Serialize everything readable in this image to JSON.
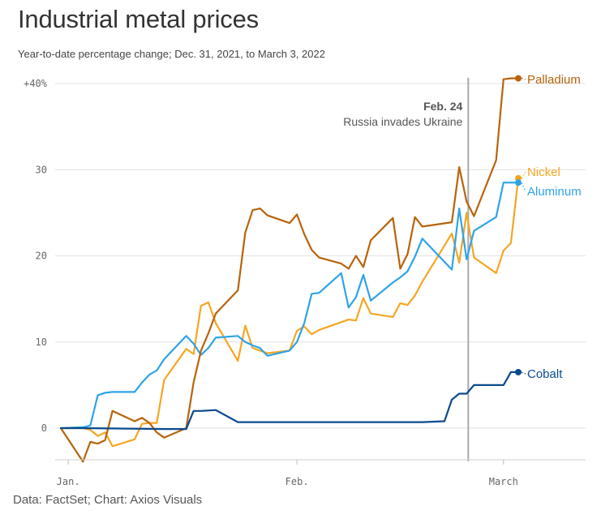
{
  "header": {
    "title": "Industrial metal prices",
    "subtitle": "Year-to-date percentage change; Dec. 31, 2021, to March 3, 2022"
  },
  "footer": {
    "source": "Data: FactSet; Chart: Axios Visuals"
  },
  "chart_data": {
    "type": "line",
    "title": "Industrial metal prices",
    "subtitle": "Year-to-date percentage change; Dec. 31, 2021, to March 3, 2022",
    "xlim": [
      "2021-12-31",
      "2022-03-03"
    ],
    "ylim": [
      -5,
      41
    ],
    "y_ticks": [
      {
        "value": 0,
        "label": "0"
      },
      {
        "value": 10,
        "label": "10"
      },
      {
        "value": 20,
        "label": "20"
      },
      {
        "value": 30,
        "label": "30"
      },
      {
        "value": 40,
        "label": "+40%"
      }
    ],
    "x_ticks": [
      {
        "date": "2022-01-01",
        "label": "Jan."
      },
      {
        "date": "2022-02-01",
        "label": "Feb."
      },
      {
        "date": "2022-03-01",
        "label": "March"
      }
    ],
    "grid": true,
    "annotation": {
      "date": "2022-02-24",
      "label": "Feb. 24",
      "text": "Russia invades Ukraine"
    },
    "series": [
      {
        "name": "Palladium",
        "color": "#b8630b",
        "x": [
          "2021-12-31",
          "2022-01-03",
          "2022-01-04",
          "2022-01-05",
          "2022-01-06",
          "2022-01-07",
          "2022-01-10",
          "2022-01-11",
          "2022-01-12",
          "2022-01-13",
          "2022-01-14",
          "2022-01-17",
          "2022-01-18",
          "2022-01-19",
          "2022-01-20",
          "2022-01-21",
          "2022-01-24",
          "2022-01-25",
          "2022-01-26",
          "2022-01-27",
          "2022-01-28",
          "2022-01-31",
          "2022-02-01",
          "2022-02-02",
          "2022-02-03",
          "2022-02-04",
          "2022-02-07",
          "2022-02-08",
          "2022-02-09",
          "2022-02-10",
          "2022-02-11",
          "2022-02-14",
          "2022-02-15",
          "2022-02-16",
          "2022-02-17",
          "2022-02-18",
          "2022-02-22",
          "2022-02-23",
          "2022-02-24",
          "2022-02-25",
          "2022-02-28",
          "2022-03-01",
          "2022-03-02",
          "2022-03-03"
        ],
        "values": [
          0,
          -3.9,
          -1.6,
          -1.8,
          -1.4,
          2,
          0.8,
          1.2,
          0.6,
          -0.5,
          -1.1,
          0,
          5.3,
          9,
          11,
          13.3,
          16,
          22.7,
          25.3,
          25.5,
          24.7,
          23.8,
          24.8,
          22.5,
          20.7,
          19.8,
          19.1,
          18.5,
          20,
          18.7,
          21.8,
          24.4,
          18.5,
          20.2,
          24.5,
          23.4,
          23.9,
          30.3,
          26.3,
          24.6,
          31.1,
          40.5,
          40.6,
          40.6
        ]
      },
      {
        "name": "Nickel",
        "color": "#f5a623",
        "x": [
          "2021-12-31",
          "2022-01-03",
          "2022-01-04",
          "2022-01-05",
          "2022-01-06",
          "2022-01-07",
          "2022-01-10",
          "2022-01-11",
          "2022-01-12",
          "2022-01-13",
          "2022-01-14",
          "2022-01-17",
          "2022-01-18",
          "2022-01-19",
          "2022-01-20",
          "2022-01-21",
          "2022-01-24",
          "2022-01-25",
          "2022-01-26",
          "2022-01-27",
          "2022-01-28",
          "2022-01-31",
          "2022-02-01",
          "2022-02-02",
          "2022-02-03",
          "2022-02-04",
          "2022-02-07",
          "2022-02-08",
          "2022-02-09",
          "2022-02-10",
          "2022-02-11",
          "2022-02-14",
          "2022-02-15",
          "2022-02-16",
          "2022-02-17",
          "2022-02-18",
          "2022-02-22",
          "2022-02-23",
          "2022-02-24",
          "2022-02-25",
          "2022-02-28",
          "2022-03-01",
          "2022-03-02",
          "2022-03-03"
        ],
        "values": [
          0,
          0,
          -0.2,
          -0.9,
          -0.5,
          -2.1,
          -1.3,
          0.5,
          0.6,
          0.6,
          5.6,
          9.2,
          8.6,
          14.2,
          14.6,
          12.2,
          7.8,
          11.9,
          9.3,
          9,
          8.7,
          9,
          11.3,
          11.8,
          10.9,
          11.4,
          12.3,
          12.6,
          12.5,
          15.1,
          13.3,
          12.9,
          14.5,
          14.3,
          15.4,
          17,
          22.6,
          19.2,
          25,
          19.8,
          18,
          20.6,
          21.5,
          29
        ]
      },
      {
        "name": "Aluminum",
        "color": "#2ea3e8",
        "x": [
          "2021-12-31",
          "2022-01-03",
          "2022-01-04",
          "2022-01-05",
          "2022-01-06",
          "2022-01-07",
          "2022-01-10",
          "2022-01-11",
          "2022-01-12",
          "2022-01-13",
          "2022-01-14",
          "2022-01-17",
          "2022-01-18",
          "2022-01-19",
          "2022-01-20",
          "2022-01-21",
          "2022-01-24",
          "2022-01-25",
          "2022-01-26",
          "2022-01-27",
          "2022-01-28",
          "2022-01-31",
          "2022-02-01",
          "2022-02-02",
          "2022-02-03",
          "2022-02-04",
          "2022-02-07",
          "2022-02-08",
          "2022-02-09",
          "2022-02-10",
          "2022-02-11",
          "2022-02-14",
          "2022-02-15",
          "2022-02-16",
          "2022-02-17",
          "2022-02-18",
          "2022-02-22",
          "2022-02-23",
          "2022-02-24",
          "2022-02-25",
          "2022-02-28",
          "2022-03-01",
          "2022-03-02",
          "2022-03-03"
        ],
        "values": [
          0,
          0.1,
          0.3,
          3.8,
          4.1,
          4.2,
          4.2,
          5.3,
          6.2,
          6.7,
          8,
          10.7,
          9.8,
          8.5,
          9.3,
          10.5,
          10.7,
          10,
          9.6,
          9.3,
          8.4,
          9,
          10,
          12.2,
          15.6,
          15.7,
          18,
          14,
          15.2,
          17.8,
          14.8,
          16.9,
          17.5,
          18.2,
          19.9,
          22,
          18.4,
          25.5,
          19.6,
          22.9,
          24.5,
          28.5,
          28.5,
          28.5
        ]
      },
      {
        "name": "Cobalt",
        "color": "#0b4a8f",
        "x": [
          "2021-12-31",
          "2022-01-03",
          "2022-01-14",
          "2022-01-17",
          "2022-01-18",
          "2022-01-19",
          "2022-01-21",
          "2022-01-24",
          "2022-01-25",
          "2022-01-26",
          "2022-02-07",
          "2022-02-18",
          "2022-02-21",
          "2022-02-22",
          "2022-02-23",
          "2022-02-24",
          "2022-02-25",
          "2022-02-28",
          "2022-03-01",
          "2022-03-02",
          "2022-03-03"
        ],
        "values": [
          0,
          0,
          -0.1,
          -0.1,
          2,
          2,
          2.1,
          0.7,
          0.7,
          0.7,
          0.7,
          0.7,
          0.8,
          3.3,
          4,
          4,
          5,
          5,
          5,
          6.5,
          6.5
        ]
      }
    ]
  }
}
